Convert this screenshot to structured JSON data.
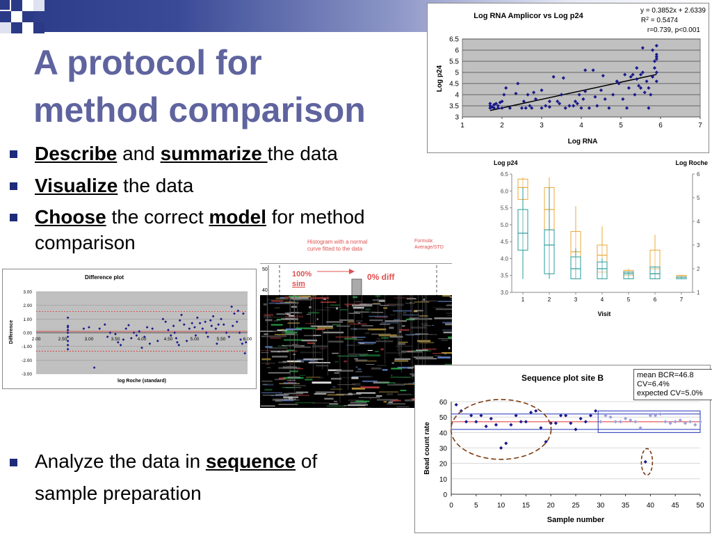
{
  "slide": {
    "title_line1": "A protocol for",
    "title_line2": "method comparison",
    "bullets": [
      {
        "w1": "Describe",
        "t1": " and ",
        "w2": "summarize ",
        "t2": "the data"
      },
      {
        "w1": "Visualize",
        "t1": " the data"
      },
      {
        "w1": "Choose",
        "t1": " the correct ",
        "w2": "model",
        "t2": " for method",
        "t3": "comparison"
      },
      {
        "t1": "Analyze the data in ",
        "w1": "sequence",
        "t2": " of",
        "t3": "sample preparation"
      }
    ]
  },
  "colors": {
    "title": "#5f649f",
    "bullet": "#1d2b7a",
    "marker": "#1a1a8c",
    "plot_gray": "#c0c0c0"
  },
  "annotations": {
    "hist_label": "Histogram with a normal curve fitted to the data",
    "hist_label_l1": "Histogram with a normal",
    "hist_label_l2": "curve fitted to the data",
    "formula_l1": "Formula:",
    "formula_l2": "Average/STD",
    "sim_l1": "100%",
    "sim_l2": "sim",
    "diff": "0% diff",
    "tick_50": "50",
    "tick_40": "40"
  },
  "chart_data": [
    {
      "type": "scatter",
      "title": "Log RNA Amplicor vs Log p24",
      "xlabel": "Log RNA",
      "ylabel": "Log p24",
      "xlim": [
        1,
        7
      ],
      "ylim": [
        3,
        6.5
      ],
      "xticks": [
        "1",
        "2",
        "3",
        "4",
        "5",
        "6",
        "7"
      ],
      "yticks": [
        "3",
        "3.5",
        "4",
        "4.5",
        "5",
        "5.5",
        "6",
        "6.5"
      ],
      "fit_label": "y = 0.3852x + 2.6339",
      "r2_label": "R",
      "r2_sup": "2",
      "r2_value": " = 0.5474",
      "r_label": "r=0.739, p<0.001",
      "fit": {
        "slope": 0.3852,
        "intercept": 2.6339,
        "x0": 1.7,
        "x1": 5.9
      },
      "points": [
        [
          1.7,
          3.4
        ],
        [
          1.7,
          3.5
        ],
        [
          1.7,
          3.6
        ],
        [
          1.75,
          3.45
        ],
        [
          1.8,
          3.4
        ],
        [
          1.8,
          3.55
        ],
        [
          1.85,
          3.6
        ],
        [
          1.9,
          3.4
        ],
        [
          1.9,
          3.5
        ],
        [
          1.95,
          3.65
        ],
        [
          2.0,
          3.4
        ],
        [
          2.0,
          3.7
        ],
        [
          2.05,
          4.0
        ],
        [
          2.1,
          4.3
        ],
        [
          2.2,
          3.4
        ],
        [
          2.35,
          4.05
        ],
        [
          2.4,
          4.5
        ],
        [
          2.5,
          3.4
        ],
        [
          2.55,
          3.7
        ],
        [
          2.6,
          3.4
        ],
        [
          2.65,
          4.0
        ],
        [
          2.7,
          3.5
        ],
        [
          2.75,
          3.4
        ],
        [
          2.8,
          4.1
        ],
        [
          2.85,
          3.8
        ],
        [
          3.0,
          3.4
        ],
        [
          3.0,
          4.2
        ],
        [
          3.1,
          3.5
        ],
        [
          3.2,
          3.7
        ],
        [
          3.2,
          3.45
        ],
        [
          3.3,
          4.8
        ],
        [
          3.4,
          3.7
        ],
        [
          3.45,
          3.6
        ],
        [
          3.5,
          4.0
        ],
        [
          3.55,
          4.75
        ],
        [
          3.6,
          3.4
        ],
        [
          3.7,
          3.5
        ],
        [
          3.8,
          3.5
        ],
        [
          3.85,
          3.7
        ],
        [
          3.9,
          3.6
        ],
        [
          3.95,
          4.0
        ],
        [
          4.0,
          3.4
        ],
        [
          4.05,
          3.8
        ],
        [
          4.1,
          4.15
        ],
        [
          4.1,
          5.1
        ],
        [
          4.2,
          3.4
        ],
        [
          4.3,
          5.1
        ],
        [
          4.35,
          3.9
        ],
        [
          4.4,
          3.5
        ],
        [
          4.5,
          4.2
        ],
        [
          4.55,
          4.85
        ],
        [
          4.6,
          3.8
        ],
        [
          4.7,
          3.4
        ],
        [
          4.8,
          4.0
        ],
        [
          4.9,
          4.6
        ],
        [
          4.95,
          4.5
        ],
        [
          5.05,
          3.8
        ],
        [
          5.1,
          4.9
        ],
        [
          5.15,
          3.4
        ],
        [
          5.2,
          4.3
        ],
        [
          5.25,
          4.8
        ],
        [
          5.3,
          4.9
        ],
        [
          5.35,
          4.0
        ],
        [
          5.4,
          4.7
        ],
        [
          5.4,
          5.2
        ],
        [
          5.45,
          4.4
        ],
        [
          5.5,
          4.3
        ],
        [
          5.5,
          4.9
        ],
        [
          5.55,
          5.0
        ],
        [
          5.55,
          6.1
        ],
        [
          5.6,
          4.1
        ],
        [
          5.65,
          4.6
        ],
        [
          5.7,
          4.3
        ],
        [
          5.7,
          3.4
        ],
        [
          5.75,
          4.0
        ],
        [
          5.8,
          4.8
        ],
        [
          5.8,
          6.0
        ],
        [
          5.85,
          5.5
        ],
        [
          5.85,
          5.2
        ],
        [
          5.9,
          5.6
        ],
        [
          5.9,
          5.8
        ],
        [
          5.9,
          6.2
        ],
        [
          5.9,
          5.0
        ],
        [
          5.9,
          4.6
        ],
        [
          5.9,
          5.7
        ]
      ]
    },
    {
      "type": "box",
      "left_label": "Log p24",
      "right_label": "Log Roche",
      "xlabel": "Visit",
      "categories": [
        "1",
        "2",
        "3",
        "4",
        "5",
        "6",
        "7"
      ],
      "ylim_left": [
        3.0,
        6.5
      ],
      "yticks_left": [
        "3.0",
        "3.5",
        "4.0",
        "4.5",
        "5.0",
        "5.5",
        "6.0",
        "6.5"
      ],
      "ylim_right": [
        1,
        6
      ],
      "yticks_right": [
        "1",
        "2",
        "3",
        "4",
        "5",
        "6"
      ],
      "series": [
        {
          "color": "#2a9a9a",
          "boxes": [
            [
              3.4,
              4.25,
              4.75,
              5.45,
              6.1
            ],
            [
              3.4,
              3.55,
              4.4,
              4.85,
              6.1
            ],
            [
              3.4,
              3.4,
              3.7,
              4.05,
              4.3
            ],
            [
              3.4,
              3.4,
              3.7,
              3.9,
              4.0
            ],
            [
              3.4,
              3.4,
              3.55,
              3.6,
              3.6
            ],
            [
              3.4,
              3.4,
              3.55,
              3.75,
              3.75
            ],
            [
              3.4,
              3.4,
              3.45,
              3.45,
              3.45
            ]
          ]
        },
        {
          "color": "#e8a838",
          "boxes": [
            [
              5.0,
              5.75,
              6.1,
              6.35,
              6.4
            ],
            [
              4.0,
              4.85,
              5.45,
              6.1,
              6.4
            ],
            [
              3.4,
              3.7,
              4.2,
              4.8,
              5.55
            ],
            [
              3.4,
              3.6,
              4.1,
              4.4,
              4.95
            ],
            [
              3.4,
              3.5,
              3.6,
              3.65,
              3.7
            ],
            [
              3.4,
              3.55,
              3.7,
              4.25,
              4.7
            ],
            [
              3.4,
              3.45,
              3.5,
              3.5,
              3.5
            ]
          ]
        }
      ]
    },
    {
      "type": "scatter",
      "title": "Difference plot",
      "xlabel": "log Roche (standard)",
      "ylabel": "Difference",
      "xlim": [
        2.0,
        6.0
      ],
      "ylim": [
        -3.0,
        3.0
      ],
      "xticks": [
        "2.00",
        "2.50",
        "3.00",
        "3.50",
        "4.00",
        "4.50",
        "5.00",
        "5.50",
        "6.00"
      ],
      "yticks": [
        "3.00",
        "2.00",
        "1.00",
        "0.00",
        "-1.00",
        "-2.00",
        "-3.00"
      ],
      "hlines": [
        {
          "y": 1.55,
          "color": "#dd3333",
          "dash": true
        },
        {
          "y": -1.35,
          "color": "#dd3333",
          "dash": true
        },
        {
          "y": 0.1,
          "color": "#dd3333",
          "dash": false
        }
      ],
      "points": [
        [
          2.6,
          1.1
        ],
        [
          2.6,
          0.5
        ],
        [
          2.6,
          0.2
        ],
        [
          2.6,
          0.0
        ],
        [
          2.6,
          -0.3
        ],
        [
          2.6,
          -0.6
        ],
        [
          2.6,
          -0.9
        ],
        [
          2.6,
          -1.2
        ],
        [
          2.6,
          0.4
        ],
        [
          2.9,
          0.3
        ],
        [
          3.0,
          0.4
        ],
        [
          3.1,
          -2.55
        ],
        [
          3.2,
          0.3
        ],
        [
          3.3,
          0.6
        ],
        [
          3.35,
          -0.3
        ],
        [
          3.4,
          0.0
        ],
        [
          3.5,
          -0.1
        ],
        [
          3.55,
          -0.7
        ],
        [
          3.6,
          -0.9
        ],
        [
          3.65,
          -0.5
        ],
        [
          3.7,
          0.3
        ],
        [
          3.75,
          0.55
        ],
        [
          3.8,
          -0.4
        ],
        [
          3.85,
          0.0
        ],
        [
          3.9,
          -0.2
        ],
        [
          3.95,
          0.1
        ],
        [
          4.0,
          -1.1
        ],
        [
          4.05,
          -0.3
        ],
        [
          4.1,
          0.4
        ],
        [
          4.15,
          -0.8
        ],
        [
          4.2,
          0.3
        ],
        [
          4.3,
          -0.6
        ],
        [
          4.4,
          1.0
        ],
        [
          4.45,
          0.8
        ],
        [
          4.5,
          0.2
        ],
        [
          4.55,
          -0.2
        ],
        [
          4.6,
          0.5
        ],
        [
          4.62,
          0.0
        ],
        [
          4.65,
          -0.4
        ],
        [
          4.67,
          -0.7
        ],
        [
          4.7,
          -0.9
        ],
        [
          4.72,
          0.9
        ],
        [
          4.75,
          1.3
        ],
        [
          4.8,
          0.6
        ],
        [
          4.85,
          -0.6
        ],
        [
          4.9,
          0.3
        ],
        [
          4.95,
          0.7
        ],
        [
          5.0,
          0.4
        ],
        [
          5.02,
          -0.2
        ],
        [
          5.05,
          1.1
        ],
        [
          5.1,
          0.7
        ],
        [
          5.15,
          0.3
        ],
        [
          5.2,
          0.8
        ],
        [
          5.22,
          0.0
        ],
        [
          5.25,
          -0.3
        ],
        [
          5.3,
          0.9
        ],
        [
          5.32,
          0.5
        ],
        [
          5.35,
          1.2
        ],
        [
          5.4,
          0.3
        ],
        [
          5.42,
          -0.8
        ],
        [
          5.45,
          0.6
        ],
        [
          5.5,
          1.0
        ],
        [
          5.55,
          0.6
        ],
        [
          5.6,
          0.0
        ],
        [
          5.65,
          -0.3
        ],
        [
          5.7,
          1.9
        ],
        [
          5.72,
          0.5
        ],
        [
          5.75,
          1.4
        ],
        [
          5.8,
          0.8
        ],
        [
          5.82,
          1.6
        ],
        [
          5.85,
          0.0
        ],
        [
          5.87,
          -0.5
        ],
        [
          5.9,
          -0.8
        ],
        [
          5.92,
          1.4
        ],
        [
          5.95,
          -1.5
        ],
        [
          5.97,
          -0.7
        ]
      ]
    },
    {
      "type": "scatter",
      "title": "Sequence plot site B",
      "xlabel": "Sample number",
      "ylabel": "Bead count rate",
      "xlim": [
        0,
        50
      ],
      "ylim": [
        0,
        60
      ],
      "xticks": [
        "0",
        "5",
        "10",
        "15",
        "20",
        "25",
        "30",
        "35",
        "40",
        "45",
        "50"
      ],
      "yticks": [
        "0",
        "10",
        "20",
        "30",
        "40",
        "50",
        "60"
      ],
      "legend": [
        "mean BCR=46.8",
        "CV=6.4%",
        "expected CV=5.0%"
      ],
      "hlines": [
        {
          "y": 52,
          "color": "#2233bb"
        },
        {
          "y": 47,
          "color": "#dd3333"
        },
        {
          "y": 42,
          "color": "#2233bb"
        }
      ],
      "points": [
        [
          1,
          58
        ],
        [
          2,
          54
        ],
        [
          3,
          47
        ],
        [
          4,
          51
        ],
        [
          5,
          47
        ],
        [
          6,
          51
        ],
        [
          7,
          44
        ],
        [
          8,
          49
        ],
        [
          9,
          45
        ],
        [
          10,
          30
        ],
        [
          11,
          33
        ],
        [
          12,
          45
        ],
        [
          13,
          51
        ],
        [
          14,
          47
        ],
        [
          15,
          47
        ],
        [
          16,
          53
        ],
        [
          17,
          54
        ],
        [
          18,
          43
        ],
        [
          19,
          34
        ],
        [
          20,
          46
        ],
        [
          21,
          46
        ],
        [
          22,
          51
        ],
        [
          23,
          51
        ],
        [
          24,
          46
        ],
        [
          25,
          42
        ],
        [
          26,
          49
        ],
        [
          27,
          47
        ],
        [
          28,
          51
        ],
        [
          29,
          54
        ],
        [
          39,
          21
        ]
      ],
      "light_points": [
        [
          30,
          47
        ],
        [
          31,
          51
        ],
        [
          32,
          50
        ],
        [
          33,
          47
        ],
        [
          34,
          47
        ],
        [
          35,
          49
        ],
        [
          36,
          48
        ],
        [
          37,
          47
        ],
        [
          38,
          43
        ],
        [
          40,
          51
        ],
        [
          41,
          51
        ],
        [
          42,
          52
        ],
        [
          43,
          47
        ],
        [
          44,
          46
        ],
        [
          45,
          47
        ],
        [
          46,
          48
        ],
        [
          47,
          46
        ],
        [
          48,
          47
        ],
        [
          49,
          45
        ],
        [
          50,
          47
        ]
      ]
    }
  ]
}
